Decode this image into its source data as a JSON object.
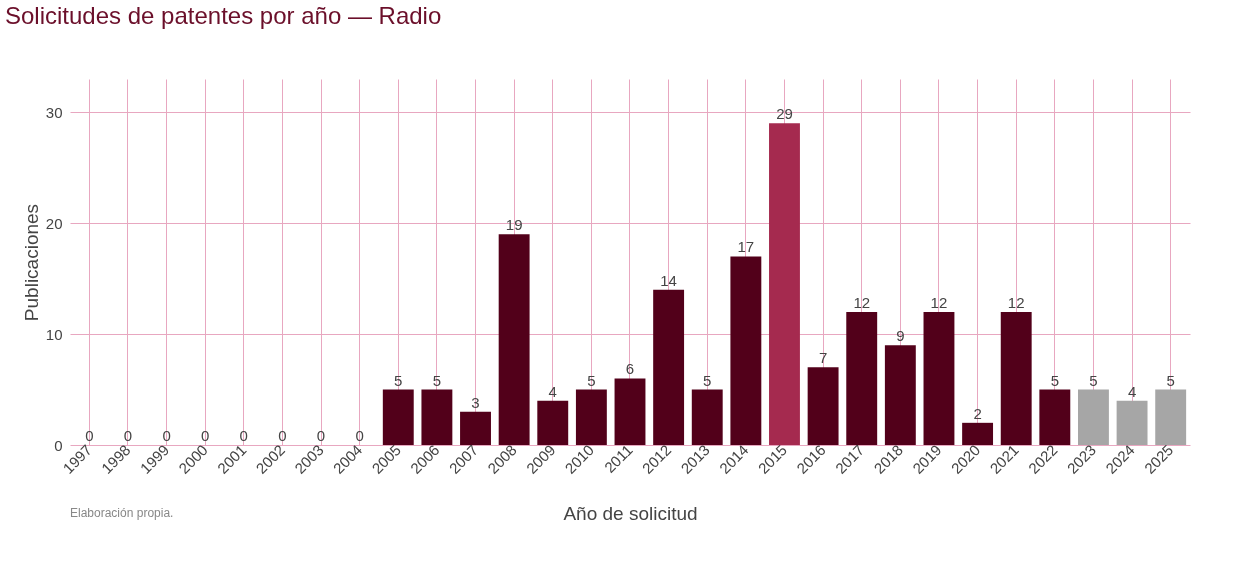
{
  "chart_data": {
    "type": "bar",
    "title": "Solicitudes de patentes por año — Radio",
    "xlabel": "Año de solicitud",
    "ylabel": "Publicaciones",
    "categories": [
      "1997",
      "1998",
      "1999",
      "2000",
      "2001",
      "2002",
      "2003",
      "2004",
      "2005",
      "2006",
      "2007",
      "2008",
      "2009",
      "2010",
      "2011",
      "2012",
      "2013",
      "2014",
      "2015",
      "2016",
      "2017",
      "2018",
      "2019",
      "2020",
      "2021",
      "2022",
      "2023",
      "2024",
      "2025"
    ],
    "values": [
      0,
      0,
      0,
      0,
      0,
      0,
      0,
      0,
      5,
      5,
      3,
      19,
      4,
      5,
      6,
      14,
      5,
      17,
      29,
      7,
      12,
      9,
      12,
      2,
      12,
      5,
      5,
      4,
      5
    ],
    "colors": [
      "#52001a",
      "#52001a",
      "#52001a",
      "#52001a",
      "#52001a",
      "#52001a",
      "#52001a",
      "#52001a",
      "#52001a",
      "#52001a",
      "#52001a",
      "#52001a",
      "#52001a",
      "#52001a",
      "#52001a",
      "#52001a",
      "#52001a",
      "#52001a",
      "#a52a4f",
      "#52001a",
      "#52001a",
      "#52001a",
      "#52001a",
      "#52001a",
      "#52001a",
      "#52001a",
      "#a6a6a6",
      "#a6a6a6",
      "#a6a6a6"
    ],
    "ylim": [
      0,
      33
    ],
    "yticks": [
      0,
      10,
      20,
      30
    ],
    "grid": true,
    "data_labels": true,
    "annotations": [
      "Elaboración propia."
    ]
  }
}
